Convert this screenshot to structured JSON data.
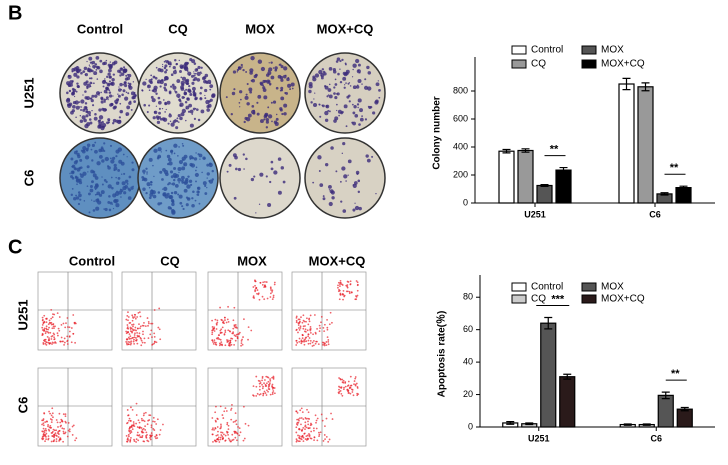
{
  "panel_labels": [
    "B",
    "C"
  ],
  "columns": [
    "Control",
    "CQ",
    "MOX",
    "MOX+CQ"
  ],
  "rows": [
    "U251",
    "C6"
  ],
  "chart_data": [
    {
      "type": "bar",
      "ylabel": "Colony number",
      "categories": [
        "U251",
        "C6"
      ],
      "series": [
        {
          "name": "Control",
          "color": "#ffffff",
          "values": [
            370,
            850
          ],
          "errors": [
            12,
            40
          ]
        },
        {
          "name": "CQ",
          "color": "#999999",
          "values": [
            375,
            830
          ],
          "errors": [
            12,
            28
          ]
        },
        {
          "name": "MOX",
          "color": "#555555",
          "values": [
            125,
            65
          ],
          "errors": [
            6,
            8
          ]
        },
        {
          "name": "MOX+CQ",
          "color": "#000000",
          "values": [
            235,
            110
          ],
          "errors": [
            18,
            10
          ]
        }
      ],
      "ylim": [
        0,
        1000
      ],
      "yticks": [
        0,
        200,
        400,
        600,
        800
      ],
      "annotations": [
        "**",
        "**"
      ]
    },
    {
      "type": "bar",
      "ylabel": "Apoptosis rate(％)",
      "categories": [
        "U251",
        "C6"
      ],
      "series": [
        {
          "name": "Control",
          "color": "#ffffff",
          "values": [
            2.5,
            1.5
          ],
          "errors": [
            0.8,
            0.4
          ]
        },
        {
          "name": "CQ",
          "color": "#cccccc",
          "values": [
            2,
            1.5
          ],
          "errors": [
            0.5,
            0.4
          ]
        },
        {
          "name": "MOX",
          "color": "#555555",
          "values": [
            64,
            19.5
          ],
          "errors": [
            3.5,
            2
          ]
        },
        {
          "name": "MOX+CQ",
          "color": "#2a1a1a",
          "values": [
            31,
            11
          ],
          "errors": [
            1.5,
            1
          ]
        }
      ],
      "ylim": [
        0,
        90
      ],
      "yticks": [
        0,
        20,
        40,
        60,
        80
      ],
      "annotations": [
        "***",
        "**"
      ]
    }
  ]
}
